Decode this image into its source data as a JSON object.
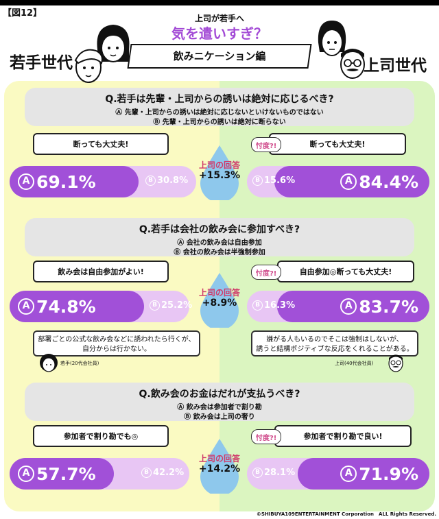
{
  "figure_label": "【図12】",
  "header": {
    "small": "上司が若手へ",
    "big": "気を遣いすぎ？",
    "ribbon": "飲みニケーション編",
    "left_generation": "若手世代",
    "right_generation": "上司世代"
  },
  "sontaku_label": "忖度?!",
  "answer_label": "上司の回答",
  "questions": [
    {
      "title": "Q.若手は先輩・上司からの誘いは絶対に応じるべき?",
      "opt_a": "Ⓐ 先輩・上司からの誘いは絶対に応じないといけないものではない",
      "opt_b": "Ⓑ 先輩・上司からの誘いは絶対に断らない",
      "left_bubble": "断っても大丈夫!",
      "right_bubble": "断っても大丈夫!",
      "left_a": "69.1%",
      "left_b": "30.8%",
      "right_b": "15.6%",
      "right_a": "84.4%",
      "diff": "+15.3%"
    },
    {
      "title": "Q.若手は会社の飲み会に参加すべき?",
      "opt_a": "Ⓐ 会社の飲み会は自由参加",
      "opt_b": "Ⓑ 会社の飲み会は半強制参加",
      "left_bubble": "飲み会は自由参加がよい!",
      "right_bubble": "自由参加◎断っても大丈夫!",
      "left_a": "74.8%",
      "left_b": "25.2%",
      "right_b": "16.3%",
      "right_a": "83.7%",
      "diff": "+8.9%"
    },
    {
      "title": "Q.飲み会のお金はだれが支払うべき?",
      "opt_a": "Ⓐ 飲み会は参加者で割り勘",
      "opt_b": "Ⓑ 飲み会は上司の奢り",
      "left_bubble": "参加者で割り勘でも◎",
      "right_bubble": "参加者で割り勘で良い!",
      "left_a": "57.7%",
      "left_b": "42.2%",
      "right_b": "28.1%",
      "right_a": "71.9%",
      "diff": "+14.2%"
    }
  ],
  "comments": {
    "young_line1": "部署ごとの公式な飲み会などに誘われたら行くが、",
    "young_line2": "自分からは行かない。",
    "young_speaker": "若手(20代会社員)",
    "boss_line1": "嫌がる人もいるのでそこは強制はしないが、",
    "boss_line2": "誘うと結構ポジティブな反応をくれることがある。",
    "boss_speaker": "上司(40代会社員)"
  },
  "copyright": "©SHIBUYA109ENTERTAINMENT Corporation　ALL Rights Reserved.",
  "colors": {
    "purple": "#a150d8",
    "light_purple": "#e8c6f4",
    "young_bg": "#fafac2",
    "boss_bg": "#dbf5c0",
    "drop": "#8ec8ec"
  }
}
